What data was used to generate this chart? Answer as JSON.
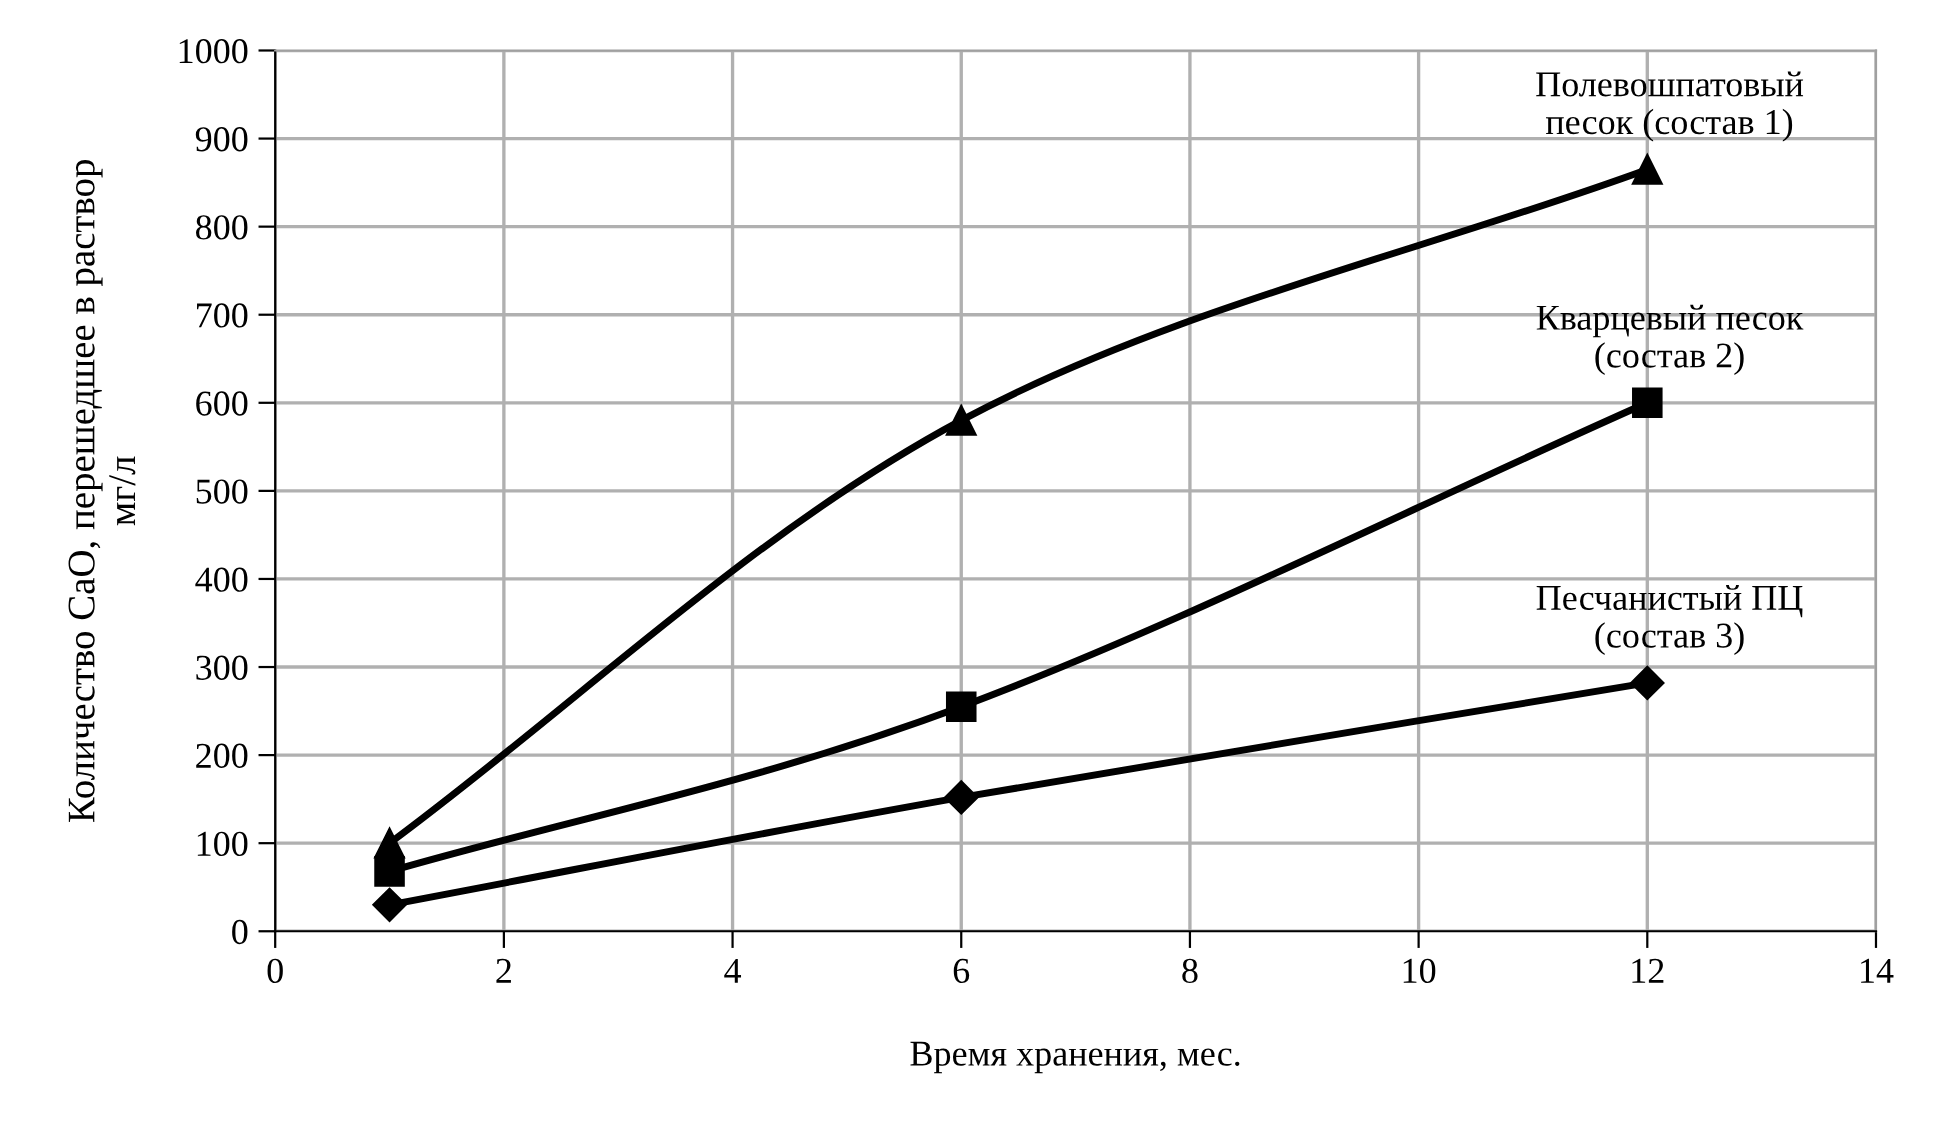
{
  "chart_data": {
    "type": "line",
    "xlabel": "Время хранения, мес.",
    "ylabel": "Количество CaO, перешедшее в раствор\nмг/л",
    "x": [
      1,
      6,
      12
    ],
    "series": [
      {
        "name": "Полевошпатовый\nпесок (состав 1)",
        "color": "#000000",
        "marker": "triangle",
        "values": [
          100,
          580,
          865
        ]
      },
      {
        "name": "Кварцевый песок\n(состав 2)",
        "color": "#000000",
        "marker": "square",
        "values": [
          68,
          255,
          600
        ]
      },
      {
        "name": "Песчанистый ПЦ\n(состав 3)",
        "color": "#000000",
        "marker": "diamond",
        "values": [
          30,
          152,
          282
        ]
      }
    ],
    "xlim": [
      0,
      14
    ],
    "xticks": [
      0,
      2,
      4,
      6,
      8,
      10,
      12,
      14
    ],
    "ylim": [
      0,
      1000
    ],
    "yticks": [
      0,
      100,
      200,
      300,
      400,
      500,
      600,
      700,
      800,
      900,
      1000
    ],
    "grid": true,
    "legend": false,
    "line_style": "solid"
  }
}
